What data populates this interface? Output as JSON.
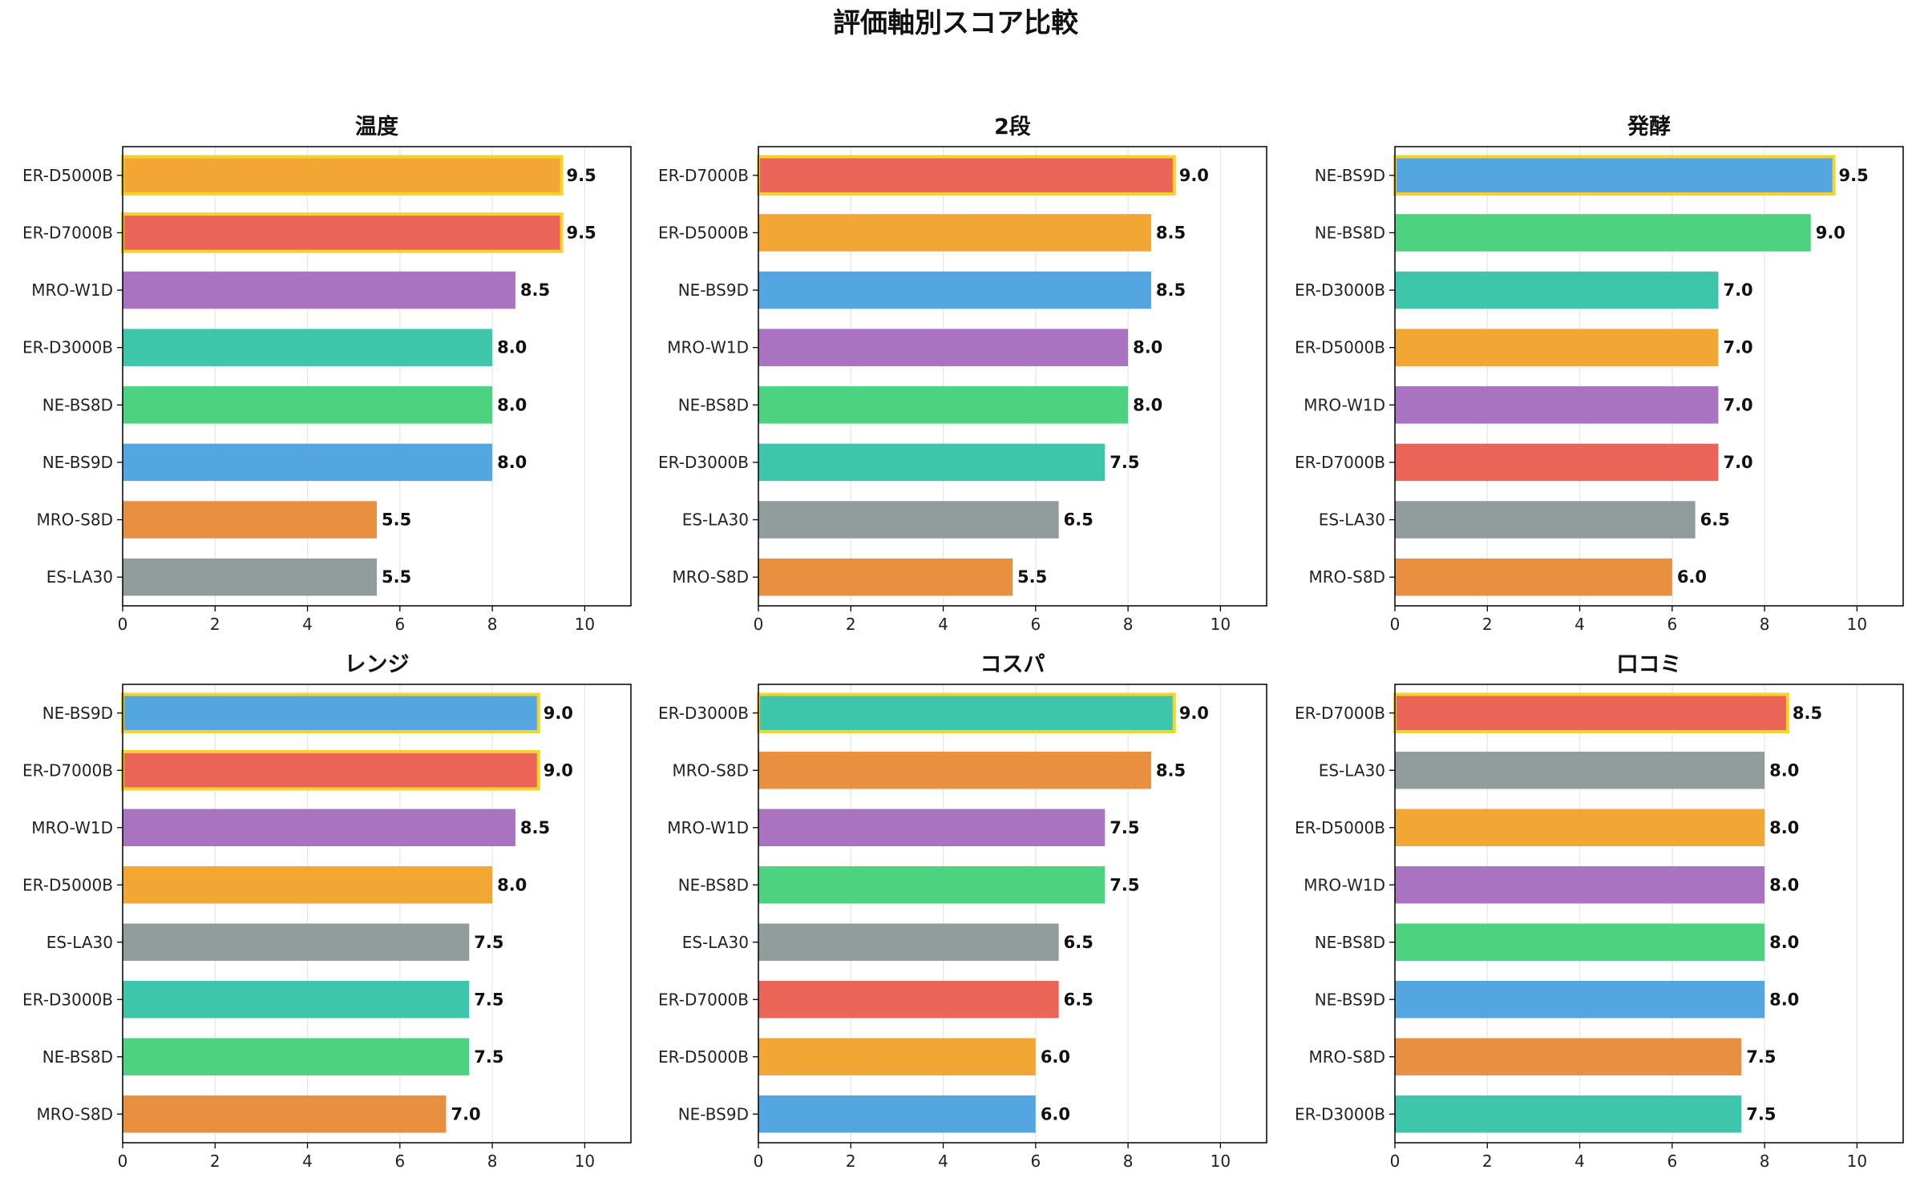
{
  "figure": {
    "title": "評価軸別スコア比較"
  },
  "colors": {
    "ER-D5000B": "#F2A634",
    "ER-D7000B": "#EA6558",
    "MRO-W1D": "#AA73C2",
    "ER-D3000B": "#3EC6AD",
    "NE-BS8D": "#4DD27F",
    "NE-BS9D": "#53A6E0",
    "MRO-S8D": "#E98F40",
    "ES-LA30": "#919D9C",
    "highlight": "#F5D329",
    "grid": "#e6e6e6"
  },
  "chart_data": [
    {
      "type": "bar",
      "orientation": "horizontal",
      "title": "温度",
      "xlim": [
        0,
        11
      ],
      "xticks": [
        0,
        2,
        4,
        6,
        8,
        10
      ],
      "grid": "x",
      "categories": [
        "ER-D5000B",
        "ER-D7000B",
        "MRO-W1D",
        "ER-D3000B",
        "NE-BS8D",
        "NE-BS9D",
        "MRO-S8D",
        "ES-LA30"
      ],
      "values": [
        9.5,
        9.5,
        8.5,
        8.0,
        8.0,
        8.0,
        5.5,
        5.5
      ],
      "labels": [
        "9.5",
        "9.5",
        "8.5",
        "8.0",
        "8.0",
        "8.0",
        "5.5",
        "5.5"
      ],
      "highlighted": [
        "ER-D5000B",
        "ER-D7000B"
      ]
    },
    {
      "type": "bar",
      "orientation": "horizontal",
      "title": "2段",
      "xlim": [
        0,
        11
      ],
      "xticks": [
        0,
        2,
        4,
        6,
        8,
        10
      ],
      "grid": "x",
      "categories": [
        "ER-D7000B",
        "ER-D5000B",
        "NE-BS9D",
        "MRO-W1D",
        "NE-BS8D",
        "ER-D3000B",
        "ES-LA30",
        "MRO-S8D"
      ],
      "values": [
        9.0,
        8.5,
        8.5,
        8.0,
        8.0,
        7.5,
        6.5,
        5.5
      ],
      "labels": [
        "9.0",
        "8.5",
        "8.5",
        "8.0",
        "8.0",
        "7.5",
        "6.5",
        "5.5"
      ],
      "highlighted": [
        "ER-D7000B"
      ]
    },
    {
      "type": "bar",
      "orientation": "horizontal",
      "title": "発酵",
      "xlim": [
        0,
        11
      ],
      "xticks": [
        0,
        2,
        4,
        6,
        8,
        10
      ],
      "grid": "x",
      "categories": [
        "NE-BS9D",
        "NE-BS8D",
        "ER-D3000B",
        "ER-D5000B",
        "MRO-W1D",
        "ER-D7000B",
        "ES-LA30",
        "MRO-S8D"
      ],
      "values": [
        9.5,
        9.0,
        7.0,
        7.0,
        7.0,
        7.0,
        6.5,
        6.0
      ],
      "labels": [
        "9.5",
        "9.0",
        "7.0",
        "7.0",
        "7.0",
        "7.0",
        "6.5",
        "6.0"
      ],
      "highlighted": [
        "NE-BS9D"
      ]
    },
    {
      "type": "bar",
      "orientation": "horizontal",
      "title": "レンジ",
      "xlim": [
        0,
        11
      ],
      "xticks": [
        0,
        2,
        4,
        6,
        8,
        10
      ],
      "grid": "x",
      "categories": [
        "NE-BS9D",
        "ER-D7000B",
        "MRO-W1D",
        "ER-D5000B",
        "ES-LA30",
        "ER-D3000B",
        "NE-BS8D",
        "MRO-S8D"
      ],
      "values": [
        9.0,
        9.0,
        8.5,
        8.0,
        7.5,
        7.5,
        7.5,
        7.0
      ],
      "labels": [
        "9.0",
        "9.0",
        "8.5",
        "8.0",
        "7.5",
        "7.5",
        "7.5",
        "7.0"
      ],
      "highlighted": [
        "NE-BS9D",
        "ER-D7000B"
      ]
    },
    {
      "type": "bar",
      "orientation": "horizontal",
      "title": "コスパ",
      "xlim": [
        0,
        11
      ],
      "xticks": [
        0,
        2,
        4,
        6,
        8,
        10
      ],
      "grid": "x",
      "categories": [
        "ER-D3000B",
        "MRO-S8D",
        "MRO-W1D",
        "NE-BS8D",
        "ES-LA30",
        "ER-D7000B",
        "ER-D5000B",
        "NE-BS9D"
      ],
      "values": [
        9.0,
        8.5,
        7.5,
        7.5,
        6.5,
        6.5,
        6.0,
        6.0
      ],
      "labels": [
        "9.0",
        "8.5",
        "7.5",
        "7.5",
        "6.5",
        "6.5",
        "6.0",
        "6.0"
      ],
      "highlighted": [
        "ER-D3000B"
      ]
    },
    {
      "type": "bar",
      "orientation": "horizontal",
      "title": "口コミ",
      "xlim": [
        0,
        11
      ],
      "xticks": [
        0,
        2,
        4,
        6,
        8,
        10
      ],
      "grid": "x",
      "categories": [
        "ER-D7000B",
        "ES-LA30",
        "ER-D5000B",
        "MRO-W1D",
        "NE-BS8D",
        "NE-BS9D",
        "MRO-S8D",
        "ER-D3000B"
      ],
      "values": [
        8.5,
        8.0,
        8.0,
        8.0,
        8.0,
        8.0,
        7.5,
        7.5
      ],
      "labels": [
        "8.5",
        "8.0",
        "8.0",
        "8.0",
        "8.0",
        "8.0",
        "7.5",
        "7.5"
      ],
      "highlighted": [
        "ER-D7000B"
      ]
    }
  ]
}
